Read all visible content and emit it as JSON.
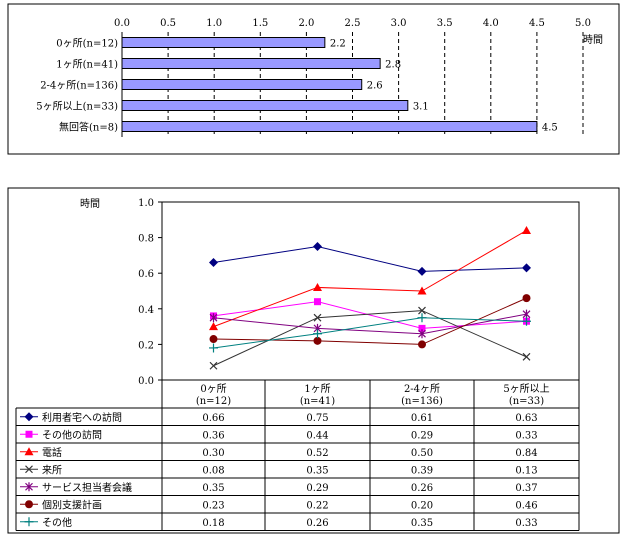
{
  "chart_data": [
    {
      "type": "bar",
      "orientation": "horizontal",
      "categories": [
        "0ヶ所(n=12)",
        "1ヶ所(n=41)",
        "2-4ヶ所(n=136)",
        "5ヶ所以上(n=33)",
        "無回答(n=8)"
      ],
      "values": [
        2.2,
        2.8,
        2.6,
        3.1,
        4.5
      ],
      "data_labels": [
        "2.2",
        "2.8",
        "2.6",
        "3.1",
        "4.5"
      ],
      "xlabel": "時間",
      "xlim": [
        0,
        5
      ],
      "ticks": [
        "0.0",
        "0.5",
        "1.0",
        "1.5",
        "2.0",
        "2.5",
        "3.0",
        "3.5",
        "4.0",
        "4.5",
        "5.0"
      ],
      "grid": "vertical-dashed",
      "bar_color": "#9999ff"
    },
    {
      "type": "line",
      "ylabel": "時間",
      "ylim": [
        0,
        1
      ],
      "yticks": [
        "0.0",
        "0.2",
        "0.4",
        "0.6",
        "0.8",
        "1.0"
      ],
      "categories": [
        {
          "line1": "0ヶ所",
          "line2": "(n=12)"
        },
        {
          "line1": "1ヶ所",
          "line2": "(n=41)"
        },
        {
          "line1": "2-4ヶ所",
          "line2": "(n=136)"
        },
        {
          "line1": "5ヶ所以上",
          "line2": "(n=33)"
        }
      ],
      "legend": "data-table-left",
      "series": [
        {
          "name": "利用者宅への訪問",
          "values": [
            0.66,
            0.75,
            0.61,
            0.63
          ],
          "labels": [
            "0.66",
            "0.75",
            "0.61",
            "0.63"
          ],
          "color": "#000080",
          "marker": "diamond"
        },
        {
          "name": "その他の訪問",
          "values": [
            0.36,
            0.44,
            0.29,
            0.33
          ],
          "labels": [
            "0.36",
            "0.44",
            "0.29",
            "0.33"
          ],
          "color": "#ff00ff",
          "marker": "square"
        },
        {
          "name": "電話",
          "values": [
            0.3,
            0.52,
            0.5,
            0.84
          ],
          "labels": [
            "0.30",
            "0.52",
            "0.50",
            "0.84"
          ],
          "color": "#ff0000",
          "marker": "triangle"
        },
        {
          "name": "来所",
          "values": [
            0.08,
            0.35,
            0.39,
            0.13
          ],
          "labels": [
            "0.08",
            "0.35",
            "0.39",
            "0.13"
          ],
          "color": "#333333",
          "marker": "x"
        },
        {
          "name": "サービス担当者会議",
          "values": [
            0.35,
            0.29,
            0.26,
            0.37
          ],
          "labels": [
            "0.35",
            "0.29",
            "0.26",
            "0.37"
          ],
          "color": "#800080",
          "marker": "star"
        },
        {
          "name": "個別支援計画",
          "values": [
            0.23,
            0.22,
            0.2,
            0.46
          ],
          "labels": [
            "0.23",
            "0.22",
            "0.20",
            "0.46"
          ],
          "color": "#800000",
          "marker": "circle"
        },
        {
          "name": "その他",
          "values": [
            0.18,
            0.26,
            0.35,
            0.33
          ],
          "labels": [
            "0.18",
            "0.26",
            "0.35",
            "0.33"
          ],
          "color": "#008080",
          "marker": "plus"
        }
      ]
    }
  ]
}
